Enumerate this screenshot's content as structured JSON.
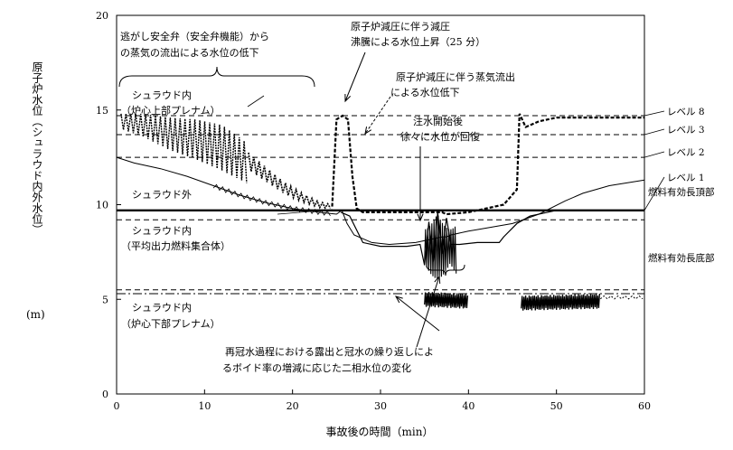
{
  "chart_data": {
    "type": "line",
    "title": "",
    "xlabel": "事故後の時間（min）",
    "ylabel": "原子炉水位（シュラウド内外水位）",
    "ylabel_unit": "(m)",
    "xlim": [
      0,
      60
    ],
    "ylim": [
      0,
      20
    ],
    "xticks": [
      0,
      10,
      20,
      30,
      40,
      50,
      60
    ],
    "yticks": [
      0,
      5,
      10,
      15,
      20
    ],
    "grid": false,
    "reference_levels": [
      {
        "label": "レベル 8",
        "value": 14.7,
        "style": "dashed"
      },
      {
        "label": "レベル 3",
        "value": 13.7,
        "style": "dashed"
      },
      {
        "label": "レベル 2",
        "value": 12.5,
        "style": "dashed"
      },
      {
        "label": "レベル 1",
        "value": 9.7,
        "style": "solid"
      },
      {
        "label": "燃料有効長頂部",
        "value": 9.2,
        "style": "dashed"
      },
      {
        "label": "燃料有効長底部",
        "value": 5.5,
        "style": "dashed"
      },
      {
        "label": "",
        "value": 5.3,
        "style": "dashdot"
      }
    ],
    "series": [
      {
        "name": "シュラウド内（炉心上部プレナム）",
        "style": "dotted-thick",
        "x": [
          0.5,
          3,
          6,
          9,
          12,
          15,
          17,
          19,
          21,
          23,
          24.5,
          25,
          25.7,
          26.3,
          26.8,
          27.3,
          28,
          37,
          37.5,
          40,
          44,
          45.5,
          45.8,
          46.5,
          48,
          50,
          52,
          55,
          60
        ],
        "y": [
          14.6,
          14.4,
          14.0,
          13.7,
          13.2,
          12.3,
          11.6,
          10.9,
          10.4,
          10.0,
          9.9,
          14.5,
          14.7,
          14.5,
          11.5,
          9.8,
          9.6,
          9.6,
          9.5,
          9.6,
          10.0,
          10.8,
          14.8,
          14.1,
          14.4,
          14.6,
          14.6,
          14.6,
          14.6
        ],
        "band_top": [
          14.8,
          14.8,
          14.6,
          14.5,
          14.2,
          13.2
        ],
        "band_bottom": [
          14.0,
          13.6,
          12.9,
          12.4,
          11.8,
          11.1
        ]
      },
      {
        "name": "シュラウド外",
        "style": "thin-solid",
        "x": [
          0,
          2,
          5,
          8,
          11,
          14,
          17,
          20,
          23,
          25,
          25.6,
          26.2,
          27,
          28,
          29,
          31,
          34,
          36,
          37,
          37.5,
          38,
          40,
          45,
          48,
          51,
          53,
          56,
          60
        ],
        "y": [
          12.5,
          12.2,
          11.9,
          11.5,
          11.0,
          10.5,
          10.1,
          9.8,
          9.6,
          9.5,
          9.7,
          9.0,
          8.4,
          8.2,
          8.0,
          7.9,
          8.0,
          8.2,
          8.3,
          8.3,
          8.4,
          8.6,
          9.0,
          9.5,
          10.2,
          10.6,
          11.0,
          11.3
        ]
      },
      {
        "name": "シュラウド内（平均出力燃料集合体）",
        "style": "thin-solid-oscillating",
        "x": [
          25.5,
          26.5,
          28,
          30,
          33,
          34.5,
          35,
          35.5,
          36,
          36.5,
          37,
          37.5,
          38,
          39,
          41,
          43.5,
          44,
          45.5,
          47,
          49,
          50
        ],
        "y": [
          9.6,
          9.4,
          8.0,
          7.8,
          7.8,
          7.9,
          6.8,
          9.1,
          7.0,
          9.6,
          7.4,
          9.3,
          7.9,
          7.9,
          8.0,
          8.0,
          8.3,
          9.0,
          9.4,
          9.6,
          9.7
        ]
      },
      {
        "name": "シュラウド内（炉心下部プレナム）",
        "style": "oscillating-band",
        "x": [
          35,
          40,
          46,
          55,
          60
        ],
        "y": [
          5.0,
          4.9,
          4.8,
          4.9,
          5.1
        ],
        "segments": [
          [
            35,
            40
          ],
          [
            46,
            55
          ]
        ]
      }
    ],
    "annotations": [
      {
        "text": "逃がし安全弁（安全弁機能）から",
        "line": 1
      },
      {
        "text": "の蒸気の流出による水位の低下",
        "line": 2
      },
      {
        "text": "シュラウド内",
        "line": 1
      },
      {
        "text": "（炉心上部プレナム）",
        "line": 2
      },
      {
        "text": "シュラウド外",
        "line": 1
      },
      {
        "text": "シュラウド内",
        "line": 1
      },
      {
        "text": "（平均出力燃料集合体）",
        "line": 2
      },
      {
        "text": "シュラウド内",
        "line": 1
      },
      {
        "text": "（炉心下部プレナム）",
        "line": 2
      },
      {
        "text": "原子炉減圧に伴う減圧",
        "line": 1
      },
      {
        "text": "沸騰による水位上昇（25 分）",
        "line": 2
      },
      {
        "text": "原子炉減圧に伴う蒸気流出",
        "line": 1
      },
      {
        "text": "による水位低下",
        "line": 2
      },
      {
        "text": "注水開始後",
        "line": 1
      },
      {
        "text": "徐々に水位が回復",
        "line": 2
      },
      {
        "text": "再冠水過程における露出と冠水の繰り返しによ",
        "line": 1
      },
      {
        "text": "るボイド率の増減に応じた二相水位の変化",
        "line": 2
      }
    ]
  }
}
